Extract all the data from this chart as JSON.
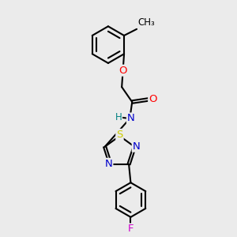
{
  "bg_color": "#ebebeb",
  "bond_color": "#000000",
  "bond_width": 1.5,
  "atom_colors": {
    "O": "#ff0000",
    "N": "#0000cc",
    "S": "#cccc00",
    "F": "#cc00cc",
    "H": "#008080",
    "C": "#000000"
  },
  "font_size": 9.5,
  "small_font": 8.5
}
